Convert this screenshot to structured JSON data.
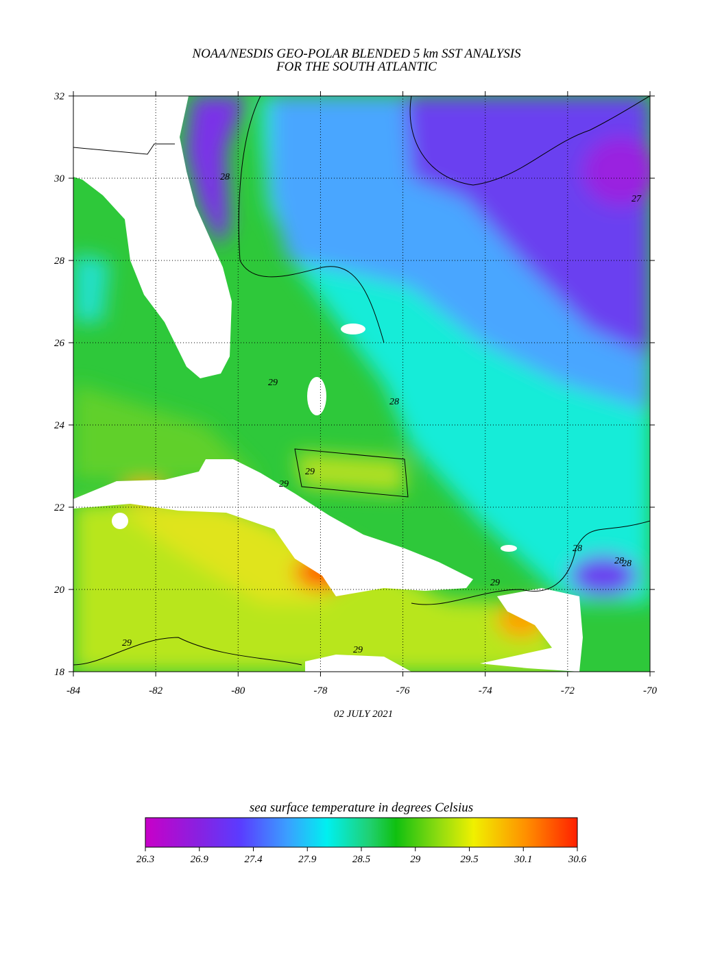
{
  "header": {
    "title": [
      "NOAA/NESDIS GEO-POLAR BLENDED 5 km SST ANALYSIS",
      "FOR THE SOUTH ATLANTIC"
    ]
  },
  "map": {
    "xlim": [
      -84,
      -70
    ],
    "ylim": [
      18,
      32
    ],
    "xticks": [
      -84,
      -82,
      -80,
      -78,
      -76,
      -74,
      -72,
      -70
    ],
    "yticks": [
      18,
      20,
      22,
      24,
      26,
      28,
      30,
      32
    ],
    "date": "02 JULY 2021",
    "contour_labels": [
      "28",
      "29",
      "28",
      "29",
      "29",
      "29",
      "28",
      "28",
      "28",
      "29",
      "29",
      "27"
    ]
  },
  "colorbar": {
    "label": "sea surface temperature in degrees Celsius",
    "ticks": [
      26.3,
      26.9,
      27.4,
      27.9,
      28.5,
      29.0,
      29.5,
      30.1,
      30.6
    ]
  }
}
